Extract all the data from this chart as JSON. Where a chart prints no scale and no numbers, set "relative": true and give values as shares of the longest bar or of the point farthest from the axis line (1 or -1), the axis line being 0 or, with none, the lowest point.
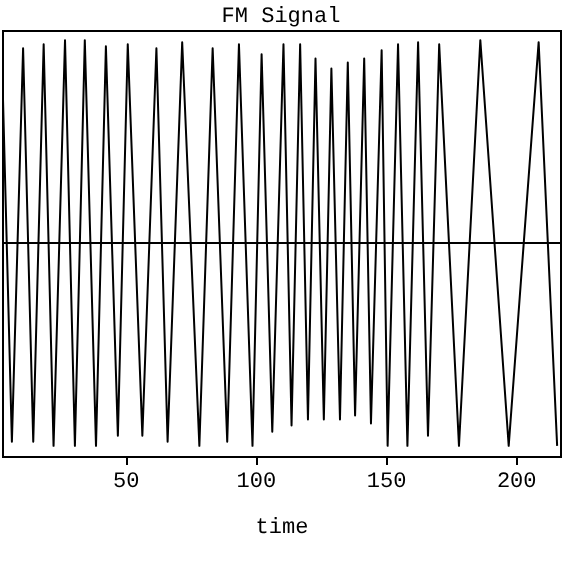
{
  "chart_data": {
    "type": "line",
    "title": "FM Signal",
    "xlabel": "time",
    "relative": true,
    "tick_labels": "x",
    "grid": false,
    "legend": false,
    "marker": "none",
    "line_style": "solid",
    "xlim": [
      2.7,
      217
    ],
    "xticks": [
      50,
      100,
      150,
      200
    ],
    "x": [
      2.7,
      6.5,
      10.8,
      14.7,
      18.7,
      22.5,
      26.9,
      30.7,
      34.5,
      38.8,
      42.6,
      47.2,
      51.0,
      56.6,
      62.0,
      66.3,
      71.9,
      78.5,
      83.6,
      89.2,
      93.7,
      98.9,
      102.4,
      106.5,
      110.8,
      113.9,
      117.2,
      120.2,
      123.1,
      126.3,
      129.2,
      132.5,
      135.5,
      138.3,
      141.8,
      144.4,
      148.5,
      150.8,
      154.8,
      158.4,
      162.5,
      166.3,
      170.6,
      178.2,
      186.4,
      197.3,
      208.8,
      215.9
    ],
    "series": [
      {
        "color": "#000000",
        "values": [
          0.9,
          -0.98,
          0.96,
          -0.98,
          0.98,
          -1,
          1,
          -1,
          1,
          -1,
          0.97,
          -0.95,
          0.98,
          -0.95,
          0.96,
          -0.98,
          0.99,
          -1,
          0.96,
          -0.98,
          0.98,
          -1,
          0.93,
          -0.93,
          0.98,
          -0.9,
          0.98,
          -0.87,
          0.91,
          -0.87,
          0.86,
          -0.87,
          0.89,
          -0.85,
          0.91,
          -0.89,
          0.95,
          -1,
          0.98,
          -1,
          0.99,
          -0.95,
          0.98,
          -1,
          1,
          -1,
          0.99,
          -1
        ]
      }
    ]
  }
}
